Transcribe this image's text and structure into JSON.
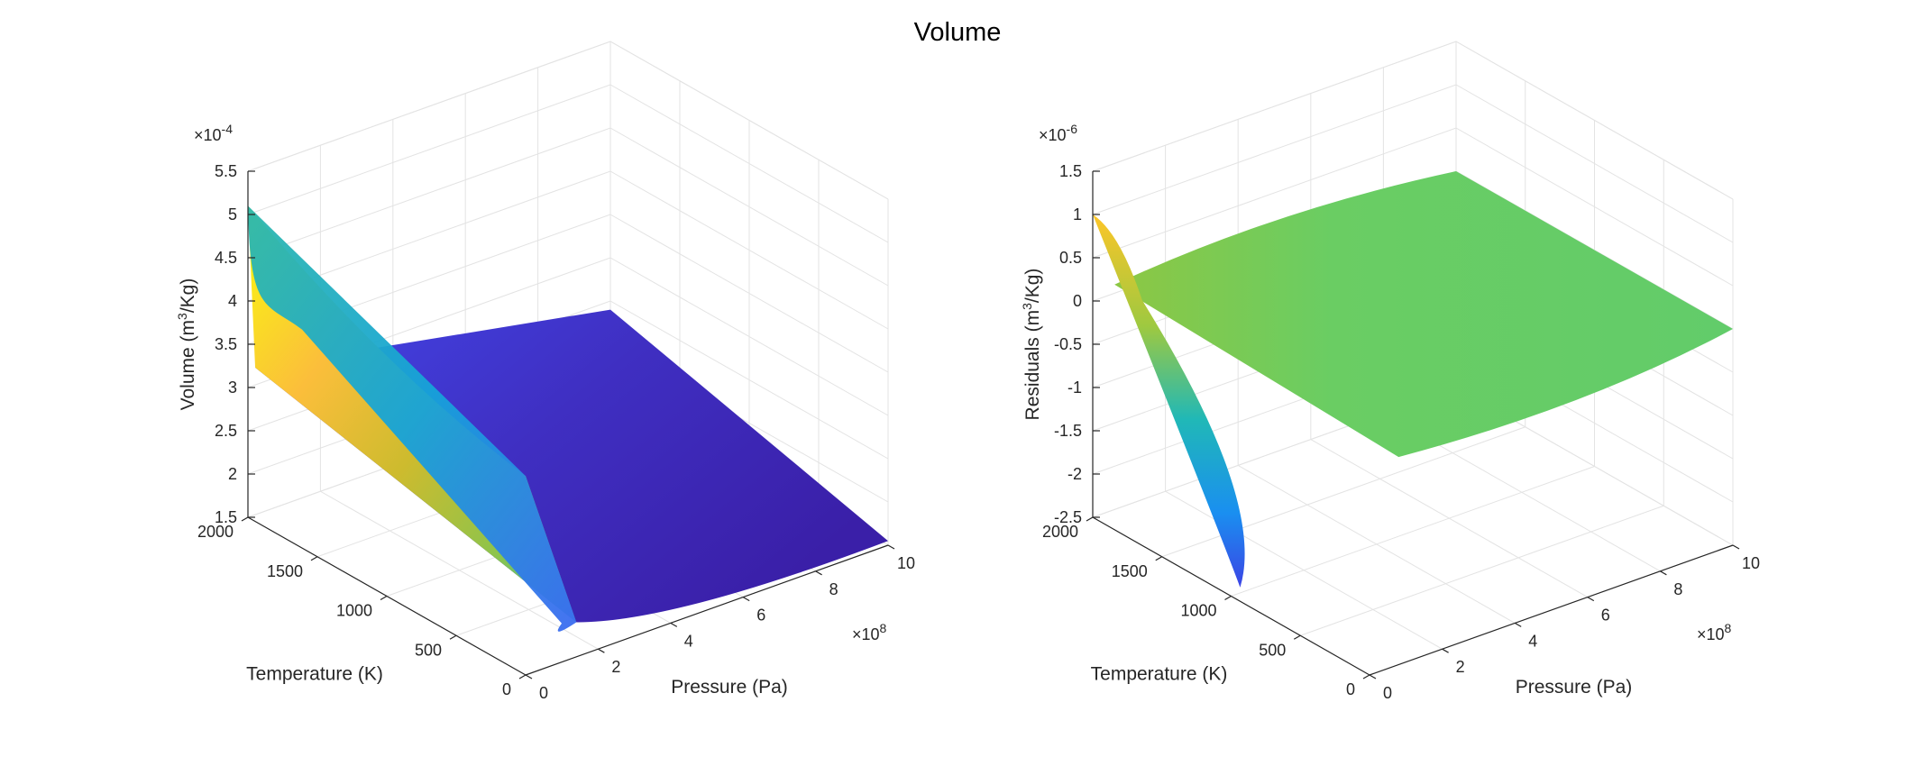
{
  "figure_title": "Volume",
  "chart_data": [
    {
      "type": "surface",
      "title": "",
      "xlabel": "Pressure (Pa)",
      "ylabel": "Temperature (K)",
      "zlabel_main": "Volume (m",
      "zlabel_sup": "3",
      "zlabel_tail": "/Kg)",
      "x_exponent_base": "×10",
      "x_exponent_power": "8",
      "z_exponent_base": "×10",
      "z_exponent_power": "-4",
      "xlim": [
        0,
        10
      ],
      "ylim": [
        0,
        2000
      ],
      "zlim": [
        1.5,
        5.5
      ],
      "x_ticks": [
        "0",
        "2",
        "4",
        "6",
        "8",
        "10"
      ],
      "y_ticks": [
        "0",
        "500",
        "1000",
        "1500",
        "2000"
      ],
      "z_ticks": [
        "1.5",
        "2",
        "2.5",
        "3",
        "3.5",
        "4",
        "4.5",
        "5",
        "5.5"
      ],
      "colormap": "parula",
      "grid": true,
      "points": [
        {
          "p": 0,
          "t": 2000,
          "v": 5.1
        },
        {
          "p": 0,
          "t": 1500,
          "v": 4.4
        },
        {
          "p": 0,
          "t": 1000,
          "v": 3.6
        },
        {
          "p": 0,
          "t": 500,
          "v": 2.8
        },
        {
          "p": 0,
          "t": 0,
          "v": 2.1
        },
        {
          "p": 10,
          "t": 2000,
          "v": 2.4
        },
        {
          "p": 10,
          "t": 0,
          "v": 1.55
        }
      ]
    },
    {
      "type": "surface",
      "title": "",
      "xlabel": "Pressure (Pa)",
      "ylabel": "Temperature (K)",
      "zlabel_main": "Residuals (m",
      "zlabel_sup": "3",
      "zlabel_tail": "/Kg)",
      "x_exponent_base": "×10",
      "x_exponent_power": "8",
      "z_exponent_base": "×10",
      "z_exponent_power": "-6",
      "xlim": [
        0,
        10
      ],
      "ylim": [
        0,
        2000
      ],
      "zlim": [
        -2.5,
        1.5
      ],
      "x_ticks": [
        "0",
        "2",
        "4",
        "6",
        "8",
        "10"
      ],
      "y_ticks": [
        "0",
        "500",
        "1000",
        "1500",
        "2000"
      ],
      "z_ticks": [
        "-2.5",
        "-2",
        "-1.5",
        "-1",
        "-0.5",
        "0",
        "0.5",
        "1",
        "1.5"
      ],
      "colormap": "parula",
      "grid": true,
      "points": [
        {
          "p": 0,
          "t": 2000,
          "v": 1.0
        },
        {
          "p": 0,
          "t": 1200,
          "v": -2.4
        },
        {
          "p": 0.5,
          "t": 1600,
          "v": 0.1
        },
        {
          "p": 10,
          "t": 2000,
          "v": 0.0
        },
        {
          "p": 10,
          "t": 0,
          "v": 0.0
        }
      ]
    }
  ]
}
